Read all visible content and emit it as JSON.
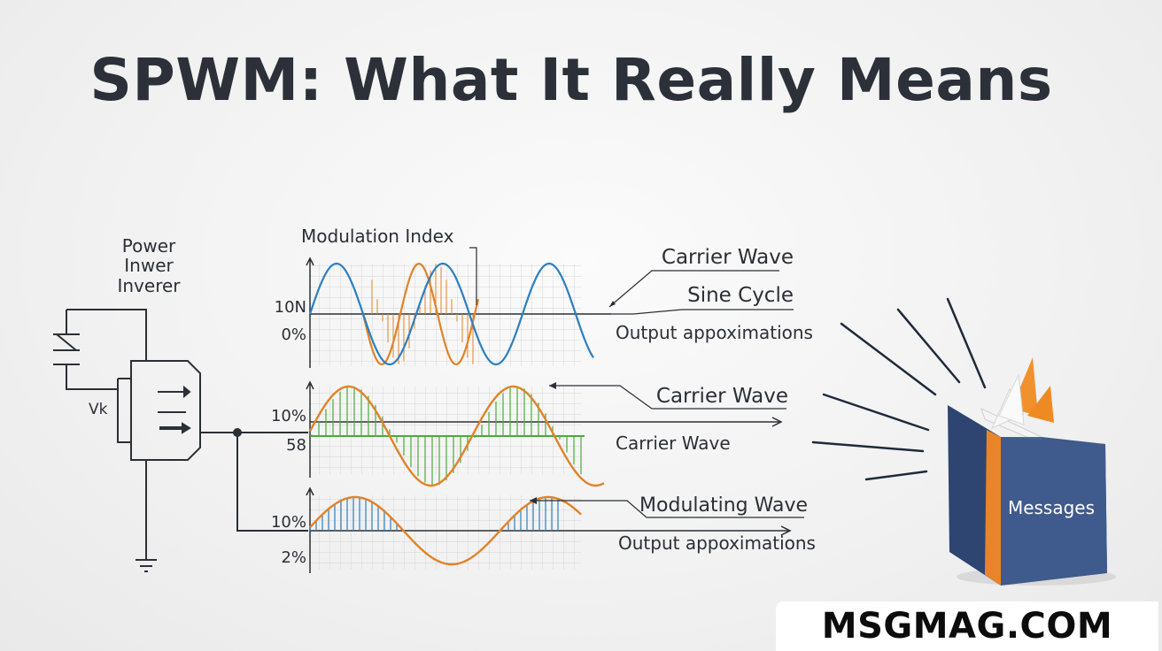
{
  "title": "SPWM: What It Really Means",
  "circuit": {
    "label_line1": "Power",
    "label_line2": "Inwer",
    "label_line3": "Inverer",
    "voltage_label": "Vk"
  },
  "panels": [
    {
      "header": "Modulation Index",
      "ticks": [
        "10N",
        "0%"
      ],
      "labels": [
        "Carrier Wave",
        "Sine Cycle",
        "Output appoximations"
      ]
    },
    {
      "ticks": [
        "10%",
        "58"
      ],
      "labels": [
        "Carrier Wave",
        "Carrier Wave"
      ]
    },
    {
      "ticks": [
        "10%",
        "2%"
      ],
      "labels": [
        "Modulating Wave",
        "Output appoximations"
      ]
    }
  ],
  "book": {
    "label": "Messages"
  },
  "footer": "MSGMAG.COM",
  "colors": {
    "blue": "#2b7fc0",
    "orange": "#e0832a",
    "green": "#4aab3a",
    "book": "#3f5a8c",
    "spine": "#e8842a"
  }
}
